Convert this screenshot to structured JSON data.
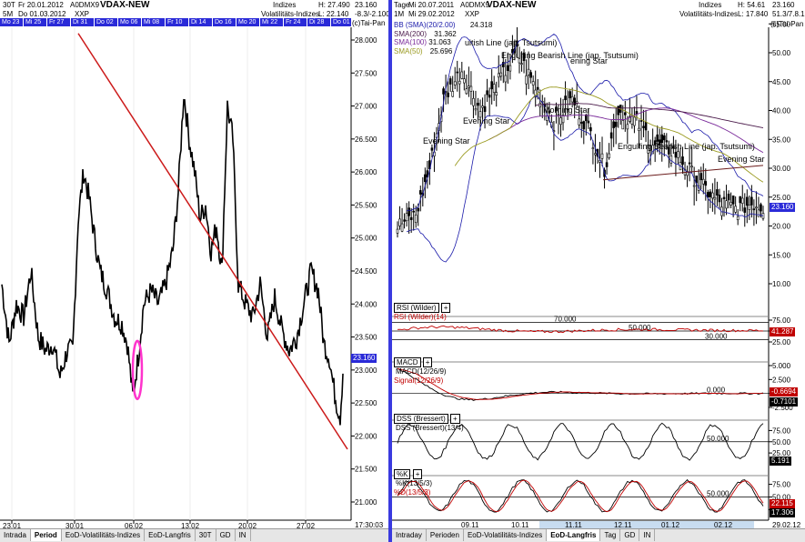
{
  "left": {
    "header": {
      "interval": "30T",
      "date1": "Fr 20.01.2012",
      "code": "A0DMX9",
      "name": "VDAX-NEW",
      "category": "Indizes",
      "high": "H: 27.490",
      "price": "23.160",
      "interval2": "5M",
      "date2": "Do 01.03.2012",
      "exchange": "XXP",
      "subcategory": "Volatilitäts-Indizes",
      "low": "L: 22.140",
      "change": "-8.3/-2.100",
      "copyright": "(c)Tai-Pan"
    },
    "datebar": [
      "Mo 23",
      "Mi 25",
      "Fr 27",
      "Di 31",
      "Do 02",
      "Mo 06",
      "Mi 08",
      "Fr 10",
      "Di 14",
      "Do 16",
      "Mo 20",
      "Mi 22",
      "Fr 24",
      "Di 28",
      "Do 01"
    ],
    "last_price": "23.160",
    "time_label": "17:30:03",
    "yaxis": [
      "28.000",
      "27.500",
      "27.000",
      "26.500",
      "26.000",
      "25.500",
      "25.000",
      "24.500",
      "24.000",
      "23.500",
      "23.000",
      "22.500",
      "22.000",
      "21.500",
      "21.000"
    ],
    "xaxis": [
      "23.01",
      "30.01",
      "06.02",
      "13.02",
      "20.02",
      "27.02"
    ],
    "tabs": [
      "Intrada",
      "Period",
      "EoD-Volatilitäts-Indizes",
      "EoD-Langfris",
      "30T",
      "GD",
      "IN"
    ],
    "active_tab": "Period",
    "colors": {
      "trendline": "#cc1a1a",
      "marker": "#ff33cc"
    }
  },
  "right": {
    "header": {
      "interval": "Tage",
      "date1": "Mi 20.07.2011",
      "code": "A0DMX9",
      "name": "VDAX-NEW",
      "category": "Indizes",
      "high": "H: 54.61",
      "price": "23.160",
      "interval2": "1M",
      "date2": "Mi 29.02.2012",
      "exchange": "XXP",
      "subcategory": "Volatilitäts-Indizes",
      "low": "L: 17.840",
      "change": "51.3/7.8.19",
      "copyright": "(c)Tai-Pan"
    },
    "overlays": [
      {
        "label": "BB (SMA)(20/2.00)",
        "value": "24.318",
        "color": "#1a1aaa"
      },
      {
        "label": "SMA(200)",
        "value": "31.362",
        "color": "#4a1a4a"
      },
      {
        "label": "SMA(100)",
        "value": "31.063",
        "color": "#7a2a9a"
      },
      {
        "label": "SMA(50)",
        "value": "25.696",
        "color": "#9a9a20"
      }
    ],
    "annotations": [
      "Evening Star",
      "Evening Star",
      "Bullish Line (jap. Tsutsumi)",
      "Engulfing Bearish Line (jap. Tsutsumi)",
      "Evening Star",
      "Morning Star",
      "Engulfing Bearish Line (jap. Tsutsumi)",
      "Evening Star"
    ],
    "annotation_display": [
      "Evening Star",
      "Evening Star",
      "uitish Line (jap. Tsutsumi)",
      "Engulfing Bearish Line (jap. Tsutsumi)",
      "ening Star",
      "Morning Star",
      "Engulfing Bearish Line (jap. Tsutsumi)",
      "Evening Star"
    ],
    "yaxis": [
      "55.00",
      "50.00",
      "45.00",
      "40.00",
      "35.00",
      "30.00",
      "25.00",
      "20.00",
      "15.00",
      "10.00"
    ],
    "last_price": "23.160",
    "rsi": {
      "title": "RSI (Wilder)",
      "label": "RSI (Wilder)(14)",
      "levels": [
        "70.000",
        "50.000",
        "30.000"
      ],
      "yaxis": [
        "75.00",
        "50.00",
        "25.00"
      ],
      "value": "41.287"
    },
    "macd": {
      "title": "MACD",
      "label": "MACD(12/26/9)",
      "signal": "Signal(12/26/9)",
      "zero": "0.000",
      "yaxis": [
        "5.000",
        "2.500",
        "0.000",
        "-2.500"
      ],
      "value1": "-0.6694",
      "value2": "-0.7101"
    },
    "dss": {
      "title": "DSS (Bressert)",
      "label": "DSS (Bressert)(13/4)",
      "level": "50.000",
      "yaxis": [
        "75.00",
        "50.00",
        "25.00"
      ],
      "value": "5.191"
    },
    "stoch": {
      "title": "%K",
      "label": "%K(13/5/3)",
      "label2": "%D(13/5/3)",
      "level": "50.000",
      "yaxis": [
        "75.00",
        "50.00",
        "25.00"
      ],
      "value1": "22.115",
      "value2": "17.306"
    },
    "xaxis": [
      "09.11",
      "10.11",
      "11.11",
      "12.11",
      "01.12",
      "02.12"
    ],
    "date_end": "29.02.12",
    "tabs": [
      "Intraday",
      "Perioden",
      "EoD-Volatilitäts-Indizes",
      "EoD-Langfris",
      "Tag",
      "GD",
      "IN"
    ],
    "active_tab": "EoD-Langfris"
  }
}
